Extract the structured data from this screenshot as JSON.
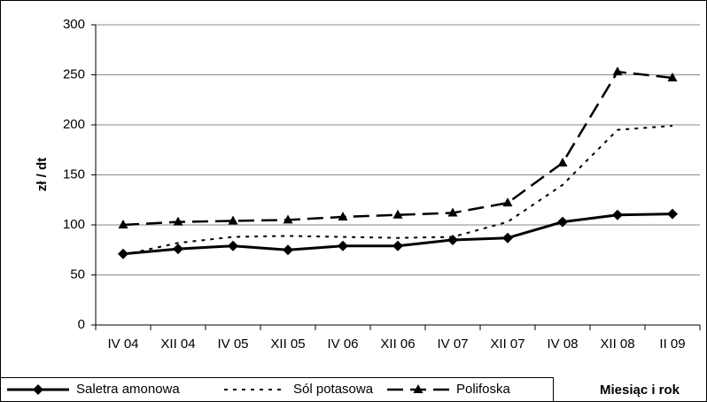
{
  "chart_data": {
    "type": "line",
    "y_label": "zł / dt",
    "x_label": "Miesiąc i rok",
    "categories": [
      "IV 04",
      "XII 04",
      "IV 05",
      "XII 05",
      "IV 06",
      "XII 06",
      "IV 07",
      "XII 07",
      "IV 08",
      "XII 08",
      "II 09"
    ],
    "series": [
      {
        "name": "Saletra amonowa",
        "color": "#000000",
        "dash": "solid",
        "marker": "diamond",
        "values": [
          71,
          76,
          79,
          75,
          79,
          79,
          85,
          87,
          103,
          110,
          111
        ]
      },
      {
        "name": "Sól potasowa",
        "color": "#000000",
        "dash": "dotted",
        "marker": "none",
        "values": [
          70,
          82,
          88,
          89,
          88,
          87,
          88,
          103,
          140,
          195,
          199
        ]
      },
      {
        "name": "Polifoska",
        "color": "#000000",
        "dash": "dashed",
        "marker": "triangle",
        "values": [
          100,
          103,
          104,
          105,
          108,
          110,
          112,
          122,
          162,
          253,
          247
        ]
      }
    ],
    "ylim": [
      0,
      300
    ],
    "yticks": [
      0,
      50,
      100,
      150,
      200,
      250,
      300
    ],
    "grid": true,
    "legend": "bottom"
  }
}
